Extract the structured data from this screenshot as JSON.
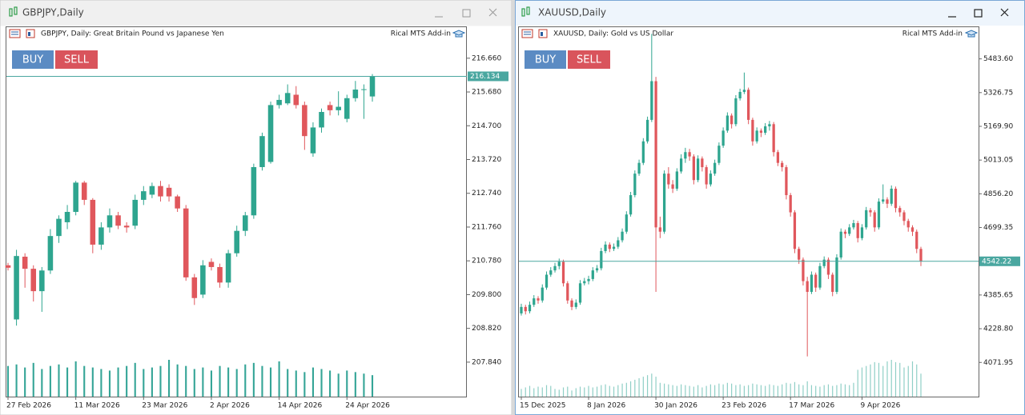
{
  "windows": [
    {
      "title": "GBPJPY,Daily",
      "header": "GBPJPY, Daily:  Great Britain Pound vs Japanese Yen",
      "addin": "Rical MTS Add-in",
      "buttons": [
        "BUY",
        "SELL"
      ]
    },
    {
      "title": "XAUUSD,Daily",
      "header": "XAUUSD, Daily:  Gold vs US Dollar",
      "addin": "Rical MTS Add-in",
      "buttons": [
        "BUY",
        "SELL"
      ]
    }
  ],
  "chart_data": [
    {
      "type": "candlestick",
      "categories": [
        "27 Feb 2026",
        null,
        null,
        null,
        null,
        null,
        null,
        null,
        "11 Mar 2026",
        null,
        null,
        null,
        null,
        null,
        null,
        null,
        "23 Mar 2026",
        null,
        null,
        null,
        null,
        null,
        null,
        null,
        "2 Apr 2026",
        null,
        null,
        null,
        null,
        null,
        null,
        null,
        "14 Apr 2026",
        null,
        null,
        null,
        null,
        null,
        null,
        null,
        "24 Apr 2026",
        null,
        null,
        null
      ],
      "ohlc": [
        [
          210.65,
          210.72,
          210.5,
          210.58
        ],
        [
          209.08,
          211.1,
          208.9,
          210.92
        ],
        [
          210.9,
          211.0,
          210.0,
          210.55
        ],
        [
          210.55,
          210.65,
          209.6,
          209.9
        ],
        [
          209.9,
          210.6,
          209.3,
          210.5
        ],
        [
          210.5,
          211.7,
          210.4,
          211.5
        ],
        [
          211.5,
          212.1,
          211.3,
          212.0
        ],
        [
          211.9,
          212.4,
          211.7,
          212.2
        ],
        [
          212.2,
          213.1,
          212.1,
          213.05
        ],
        [
          213.05,
          213.1,
          212.4,
          212.55
        ],
        [
          212.55,
          212.6,
          211.0,
          211.25
        ],
        [
          211.25,
          211.9,
          211.1,
          211.75
        ],
        [
          211.75,
          212.3,
          211.6,
          212.1
        ],
        [
          212.1,
          212.2,
          211.7,
          211.8
        ],
        [
          211.8,
          211.9,
          211.6,
          211.75
        ],
        [
          211.8,
          212.7,
          211.7,
          212.55
        ],
        [
          212.55,
          212.95,
          212.4,
          212.8
        ],
        [
          212.7,
          213.05,
          212.6,
          212.95
        ],
        [
          212.95,
          213.1,
          212.5,
          212.65
        ],
        [
          212.9,
          213.0,
          212.5,
          212.65
        ],
        [
          212.65,
          212.7,
          212.2,
          212.3
        ],
        [
          212.3,
          212.4,
          210.2,
          210.3
        ],
        [
          210.3,
          210.4,
          209.5,
          209.7
        ],
        [
          209.8,
          210.8,
          209.7,
          210.65
        ],
        [
          210.75,
          210.85,
          210.5,
          210.6
        ],
        [
          210.6,
          210.7,
          210.0,
          210.15
        ],
        [
          210.15,
          211.1,
          210.0,
          211.0
        ],
        [
          211.0,
          211.8,
          210.9,
          211.65
        ],
        [
          211.65,
          212.2,
          211.5,
          212.1
        ],
        [
          212.1,
          213.6,
          212.0,
          213.5
        ],
        [
          213.5,
          214.5,
          213.4,
          214.4
        ],
        [
          213.65,
          215.4,
          213.6,
          215.3
        ],
        [
          215.3,
          215.6,
          215.2,
          215.45
        ],
        [
          215.35,
          215.9,
          215.3,
          215.65
        ],
        [
          215.6,
          215.85,
          215.2,
          215.3
        ],
        [
          215.3,
          215.4,
          214.0,
          214.4
        ],
        [
          213.9,
          214.8,
          213.8,
          214.65
        ],
        [
          214.65,
          215.2,
          214.5,
          215.1
        ],
        [
          215.3,
          215.4,
          215.0,
          215.15
        ],
        [
          215.15,
          215.7,
          215.0,
          215.25
        ],
        [
          214.9,
          215.6,
          214.8,
          215.5
        ],
        [
          215.5,
          216.0,
          215.4,
          215.75
        ],
        [
          215.75,
          215.9,
          214.9,
          215.76
        ],
        [
          215.55,
          216.2,
          215.4,
          216.134
        ]
      ],
      "volumes": [
        40,
        42,
        38,
        44,
        36,
        40,
        42,
        38,
        46,
        40,
        38,
        36,
        34,
        38,
        40,
        44,
        36,
        38,
        40,
        48,
        42,
        40,
        36,
        38,
        34,
        40,
        38,
        36,
        42,
        44,
        40,
        38,
        46,
        36,
        34,
        32,
        38,
        36,
        34,
        30,
        34,
        32,
        30,
        28
      ],
      "ylim": [
        206.84,
        217.56
      ],
      "yticks": [
        {
          "value": 216.66,
          "label": "216.660"
        },
        {
          "value": 215.68,
          "label": "215.680"
        },
        {
          "value": 214.7,
          "label": "214.700"
        },
        {
          "value": 213.72,
          "label": "213.720"
        },
        {
          "value": 212.74,
          "label": "212.740"
        },
        {
          "value": 211.76,
          "label": "211.760"
        },
        {
          "value": 210.78,
          "label": "210.780"
        },
        {
          "value": 209.8,
          "label": "209.800"
        },
        {
          "value": 208.82,
          "label": "208.820"
        },
        {
          "value": 207.84,
          "label": "207.840"
        }
      ],
      "last_price": 216.134,
      "grid": false,
      "up_color": "#2ea58f",
      "down_color": "#e0575c",
      "volume_color": "#35a597",
      "price_line_color": "#4aa7a0"
    },
    {
      "type": "candlestick",
      "categories": [
        "15 Dec 2025",
        null,
        null,
        null,
        null,
        null,
        null,
        null,
        null,
        null,
        null,
        null,
        null,
        null,
        null,
        null,
        "8 Jan 2026",
        null,
        null,
        null,
        null,
        null,
        null,
        null,
        null,
        null,
        null,
        null,
        null,
        null,
        null,
        null,
        "30 Jan 2026",
        null,
        null,
        null,
        null,
        null,
        null,
        null,
        null,
        null,
        null,
        null,
        null,
        null,
        null,
        null,
        "23 Feb 2026",
        null,
        null,
        null,
        null,
        null,
        null,
        null,
        null,
        null,
        null,
        null,
        null,
        null,
        null,
        null,
        "17 Mar 2026",
        null,
        null,
        null,
        null,
        null,
        null,
        null,
        null,
        null,
        null,
        null,
        null,
        null,
        null,
        null,
        null,
        "9 Apr 2026",
        null,
        null,
        null,
        null,
        null,
        null,
        null,
        null,
        null,
        null,
        null,
        null,
        null,
        null
      ],
      "ohlc": [
        [
          4300,
          4345,
          4290,
          4330
        ],
        [
          4330,
          4340,
          4295,
          4310
        ],
        [
          4310,
          4355,
          4300,
          4340
        ],
        [
          4340,
          4385,
          4330,
          4370
        ],
        [
          4370,
          4380,
          4345,
          4360
        ],
        [
          4360,
          4435,
          4350,
          4420
        ],
        [
          4420,
          4495,
          4410,
          4480
        ],
        [
          4480,
          4515,
          4470,
          4500
        ],
        [
          4500,
          4535,
          4490,
          4520
        ],
        [
          4520,
          4555,
          4505,
          4540
        ],
        [
          4540,
          4550,
          4425,
          4440
        ],
        [
          4440,
          4450,
          4345,
          4360
        ],
        [
          4360,
          4370,
          4315,
          4330
        ],
        [
          4330,
          4365,
          4320,
          4350
        ],
        [
          4350,
          4455,
          4340,
          4440
        ],
        [
          4440,
          4465,
          4430,
          4450
        ],
        [
          4450,
          4475,
          4435,
          4460
        ],
        [
          4460,
          4515,
          4450,
          4500
        ],
        [
          4500,
          4525,
          4490,
          4510
        ],
        [
          4510,
          4605,
          4500,
          4590
        ],
        [
          4590,
          4635,
          4580,
          4620
        ],
        [
          4620,
          4630,
          4585,
          4600
        ],
        [
          4600,
          4625,
          4590,
          4610
        ],
        [
          4610,
          4655,
          4600,
          4640
        ],
        [
          4640,
          4695,
          4630,
          4680
        ],
        [
          4680,
          4775,
          4670,
          4760
        ],
        [
          4760,
          4865,
          4750,
          4850
        ],
        [
          4850,
          4965,
          4840,
          4950
        ],
        [
          4950,
          5015,
          4940,
          5000
        ],
        [
          5000,
          5115,
          4990,
          5100
        ],
        [
          5100,
          5215,
          5090,
          5200
        ],
        [
          5200,
          5600,
          5190,
          5380
        ],
        [
          5380,
          5400,
          4400,
          4700
        ],
        [
          4700,
          4750,
          4650,
          4680
        ],
        [
          4680,
          4965,
          4670,
          4950
        ],
        [
          4950,
          4980,
          4880,
          4900
        ],
        [
          4900,
          4920,
          4860,
          4880
        ],
        [
          4880,
          4975,
          4870,
          4960
        ],
        [
          4960,
          5040,
          4950,
          5020
        ],
        [
          5020,
          5070,
          5000,
          5050
        ],
        [
          5050,
          5065,
          5010,
          5030
        ],
        [
          5030,
          5040,
          4900,
          4920
        ],
        [
          4920,
          5035,
          4910,
          5020
        ],
        [
          5020,
          5030,
          4960,
          4980
        ],
        [
          4980,
          4990,
          4880,
          4900
        ],
        [
          4900,
          4965,
          4890,
          4950
        ],
        [
          4950,
          5015,
          4940,
          5000
        ],
        [
          5000,
          5095,
          4990,
          5080
        ],
        [
          5080,
          5165,
          5070,
          5150
        ],
        [
          5150,
          5235,
          5140,
          5220
        ],
        [
          5220,
          5230,
          5160,
          5180
        ],
        [
          5180,
          5315,
          5170,
          5300
        ],
        [
          5300,
          5345,
          5290,
          5330
        ],
        [
          5330,
          5420,
          5320,
          5340
        ],
        [
          5340,
          5350,
          5180,
          5200
        ],
        [
          5200,
          5210,
          5080,
          5100
        ],
        [
          5100,
          5165,
          5090,
          5150
        ],
        [
          5150,
          5160,
          5120,
          5140
        ],
        [
          5140,
          5185,
          5130,
          5170
        ],
        [
          5170,
          5195,
          5150,
          5180
        ],
        [
          5180,
          5190,
          5030,
          5050
        ],
        [
          5050,
          5060,
          4985,
          5000
        ],
        [
          5000,
          5010,
          4960,
          4980
        ],
        [
          4980,
          4990,
          4830,
          4850
        ],
        [
          4850,
          4860,
          4750,
          4770
        ],
        [
          4770,
          4780,
          4580,
          4600
        ],
        [
          4600,
          4610,
          4530,
          4550
        ],
        [
          4550,
          4560,
          4430,
          4450
        ],
        [
          4450,
          4470,
          4100,
          4400
        ],
        [
          4400,
          4495,
          4390,
          4480
        ],
        [
          4480,
          4490,
          4400,
          4420
        ],
        [
          4420,
          4535,
          4410,
          4520
        ],
        [
          4520,
          4565,
          4510,
          4550
        ],
        [
          4550,
          4560,
          4460,
          4480
        ],
        [
          4480,
          4490,
          4380,
          4400
        ],
        [
          4400,
          4575,
          4390,
          4560
        ],
        [
          4560,
          4695,
          4550,
          4680
        ],
        [
          4680,
          4690,
          4650,
          4670
        ],
        [
          4670,
          4715,
          4660,
          4700
        ],
        [
          4700,
          4735,
          4690,
          4720
        ],
        [
          4720,
          4730,
          4630,
          4650
        ],
        [
          4650,
          4715,
          4640,
          4700
        ],
        [
          4700,
          4795,
          4690,
          4780
        ],
        [
          4780,
          4790,
          4750,
          4770
        ],
        [
          4770,
          4780,
          4680,
          4700
        ],
        [
          4700,
          4835,
          4690,
          4820
        ],
        [
          4820,
          4900,
          4810,
          4830
        ],
        [
          4830,
          4840,
          4790,
          4810
        ],
        [
          4810,
          4895,
          4800,
          4880
        ],
        [
          4880,
          4890,
          4770,
          4790
        ],
        [
          4790,
          4800,
          4750,
          4770
        ],
        [
          4770,
          4780,
          4710,
          4730
        ],
        [
          4730,
          4740,
          4680,
          4700
        ],
        [
          4700,
          4710,
          4660,
          4680
        ],
        [
          4680,
          4690,
          4580,
          4600
        ],
        [
          4600,
          4610,
          4520,
          4542.22
        ]
      ],
      "volumes": [
        10,
        12,
        14,
        11,
        13,
        12,
        15,
        14,
        10,
        9,
        12,
        13,
        8,
        11,
        13,
        12,
        14,
        12,
        13,
        15,
        16,
        14,
        13,
        15,
        17,
        18,
        20,
        22,
        24,
        26,
        28,
        30,
        26,
        18,
        17,
        16,
        15,
        14,
        16,
        15,
        14,
        13,
        15,
        12,
        14,
        16,
        15,
        17,
        16,
        18,
        17,
        15,
        16,
        14,
        15,
        17,
        16,
        15,
        14,
        16,
        15,
        14,
        16,
        18,
        17,
        19,
        16,
        15,
        20,
        15,
        14,
        13,
        15,
        16,
        14,
        15,
        17,
        16,
        15,
        18,
        35,
        38,
        40,
        42,
        45,
        44,
        40,
        46,
        48,
        45,
        44,
        38,
        40,
        46,
        42,
        30
      ],
      "ylim": [
        3913,
        5631
      ],
      "yticks": [
        {
          "value": 5483.6,
          "label": "5483.60"
        },
        5326.75,
        {
          "value": 5169.9,
          "label": "5169.90"
        },
        5013.05,
        {
          "value": 4856.2,
          "label": "4856.20"
        },
        4699.35,
        4385.65,
        {
          "value": 4228.8,
          "label": "4228.80"
        },
        4071.95
      ],
      "last_price": 4542.22,
      "grid": false,
      "up_color": "#2ea58f",
      "down_color": "#e0575c",
      "volume_color": "#8fcfc6",
      "price_line_color": "#4aa7a0"
    }
  ]
}
